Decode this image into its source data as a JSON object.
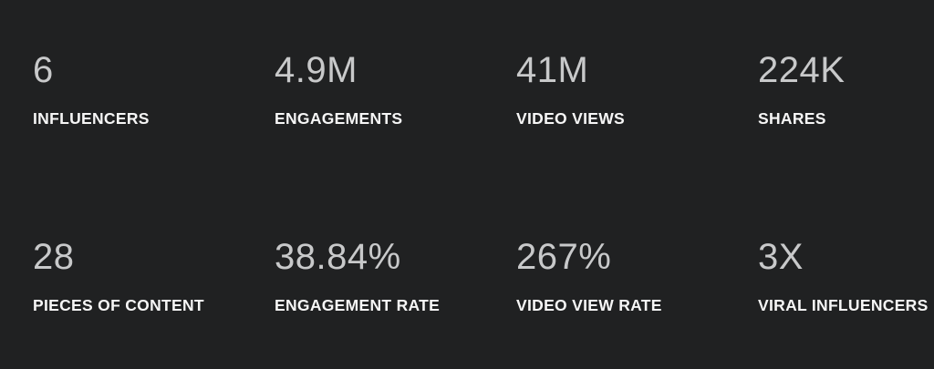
{
  "page": {
    "background_color": "#202122",
    "value_color": "#c8c9ca",
    "label_color": "#f6f6f6"
  },
  "stats": [
    {
      "value": "6",
      "label": "INFLUENCERS"
    },
    {
      "value": "4.9M",
      "label": "ENGAGEMENTS"
    },
    {
      "value": "41M",
      "label": "VIDEO VIEWS"
    },
    {
      "value": "224K",
      "label": "SHARES"
    },
    {
      "value": "28",
      "label": "PIECES OF CONTENT"
    },
    {
      "value": "38.84%",
      "label": "ENGAGEMENT RATE"
    },
    {
      "value": "267%",
      "label": "VIDEO VIEW RATE"
    },
    {
      "value": "3X",
      "label": "VIRAL INFLUENCERS"
    }
  ]
}
